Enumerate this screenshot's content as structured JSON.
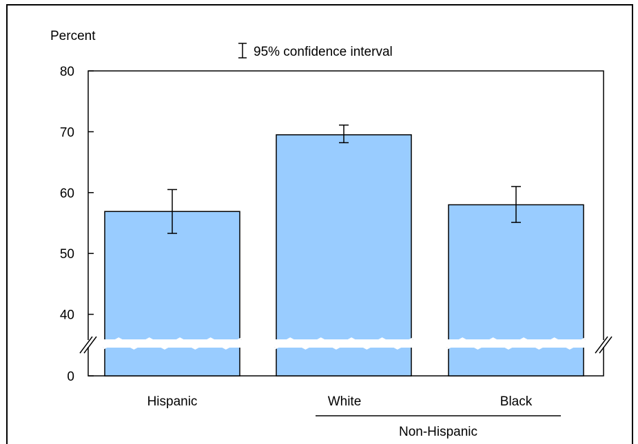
{
  "chart_data": {
    "type": "bar",
    "ylabel": "Percent",
    "ylim": [
      0,
      80
    ],
    "y_break": {
      "below": 35,
      "after_zero": true
    },
    "yticks": [
      0,
      40,
      50,
      60,
      70,
      80
    ],
    "yticks_label": [
      "0",
      "40",
      "50",
      "60",
      "70",
      "80"
    ],
    "categories": [
      "Hispanic",
      "White",
      "Black"
    ],
    "values": [
      56.9,
      69.5,
      58.0
    ],
    "ci_lower": [
      53.3,
      68.2,
      55.1
    ],
    "ci_upper": [
      60.5,
      71.1,
      61.0
    ],
    "group_label": {
      "text": "Non-Hispanic",
      "categories": [
        "White",
        "Black"
      ]
    },
    "legend": {
      "label": "95% confidence interval",
      "position": "top-center"
    },
    "bar_color": "#99ccff",
    "grid": false
  }
}
